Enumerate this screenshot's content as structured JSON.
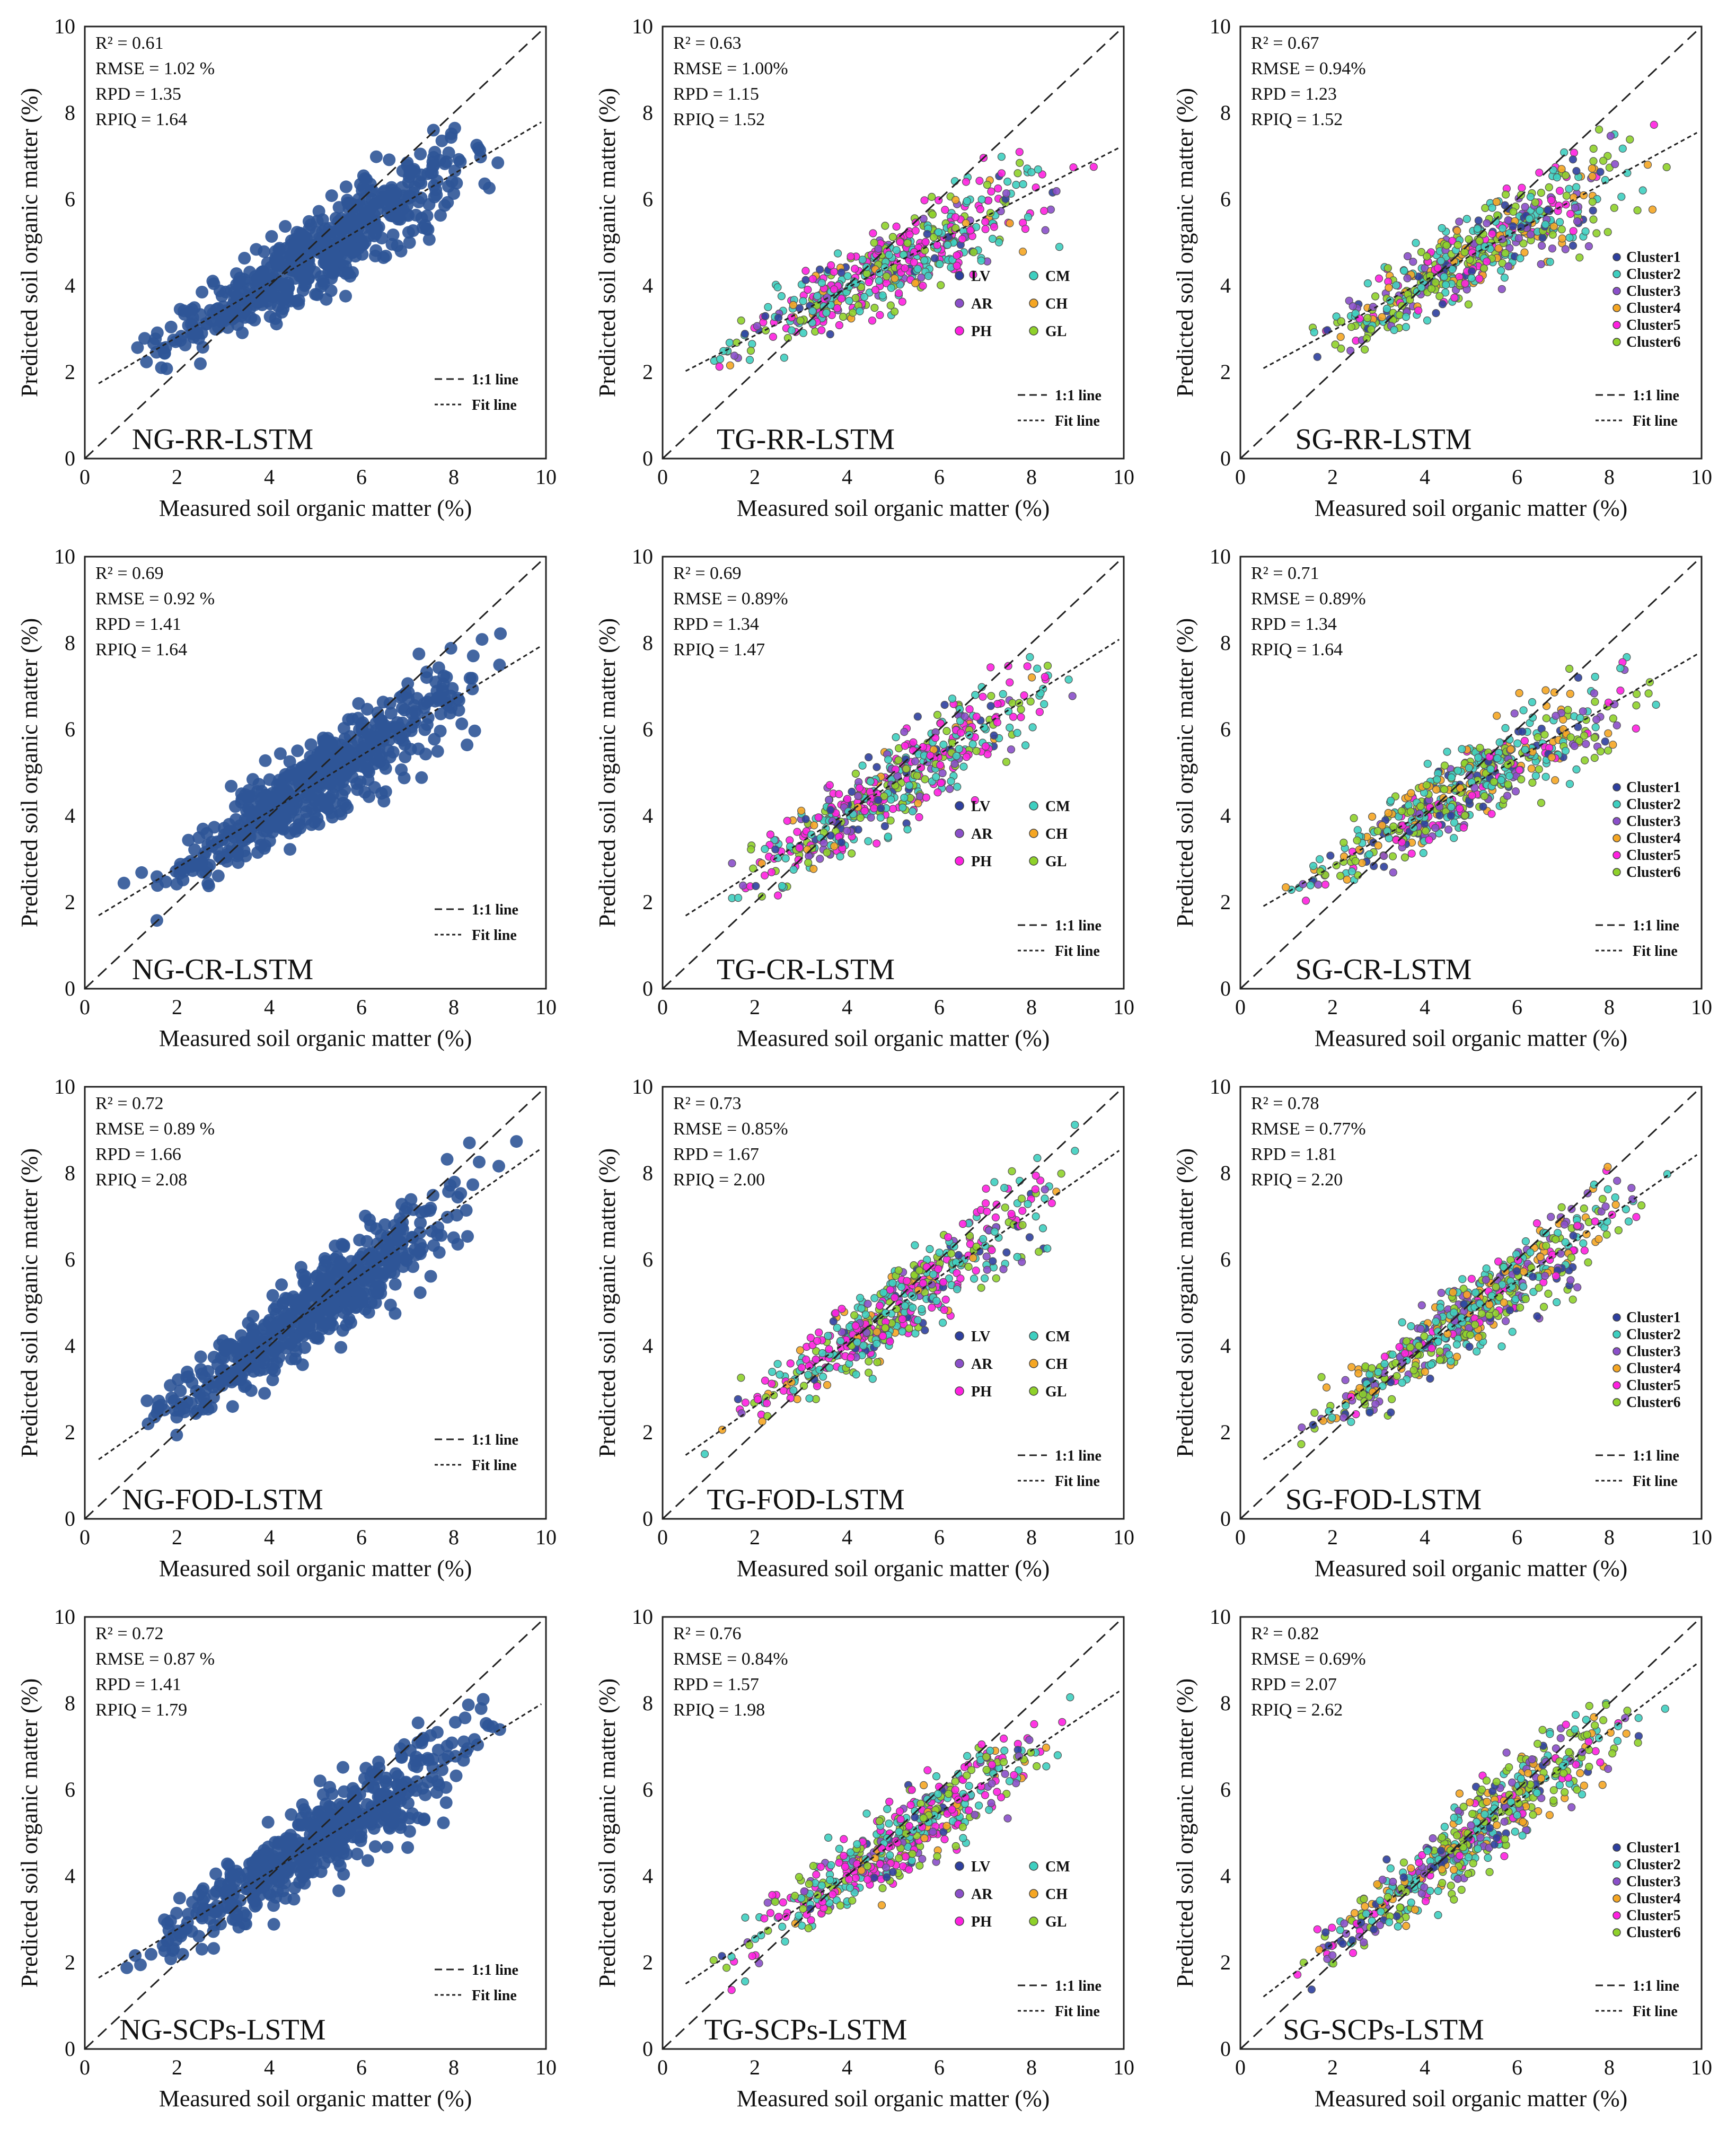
{
  "figure": {
    "xlabel": "Measured soil organic matter (%)",
    "ylabel": "Predicted soil organic matter (%)",
    "axis_ticks": [
      "0",
      "2",
      "4",
      "6",
      "8",
      "10"
    ],
    "line_legend": [
      "1:1 line",
      "Fit line"
    ],
    "soil_type_legend": [
      "LV",
      "CM",
      "AR",
      "CH",
      "PH",
      "GL"
    ],
    "cluster_legend": [
      "Cluster1",
      "Cluster2",
      "Cluster3",
      "Cluster4",
      "Cluster5",
      "Cluster6"
    ],
    "colors": {
      "ng_points": "#2f5597",
      "LV": "#2e3f9e",
      "CM": "#3ecfc0",
      "AR": "#8a4fc9",
      "CH": "#f5a623",
      "PH": "#ff20e0",
      "GL": "#8fd12a",
      "Cluster1": "#2e3f9e",
      "Cluster2": "#3ecfc0",
      "Cluster3": "#8a4fc9",
      "Cluster4": "#f5a623",
      "Cluster5": "#ff20e0",
      "Cluster6": "#8fd12a"
    }
  },
  "chart_data": [
    {
      "id": "NG-RR-LSTM",
      "type": "scatter",
      "group": "NG",
      "title": "NG-RR-LSTM",
      "xlim": [
        0,
        10
      ],
      "ylim": [
        0,
        10
      ],
      "stats": [
        "R² = 0.61",
        "RMSE = 1.02 %",
        "RPD = 1.35",
        "RPIQ = 1.64"
      ],
      "fit": {
        "slope": 0.63,
        "intercept": 1.55
      },
      "n": 560,
      "seed": 11
    },
    {
      "id": "TG-RR-LSTM",
      "type": "scatter",
      "group": "TG",
      "title": "TG-RR-LSTM",
      "xlim": [
        0,
        10
      ],
      "ylim": [
        0,
        10
      ],
      "stats": [
        "R² = 0.63",
        "RMSE = 1.00%",
        "RPD = 1.15",
        "RPIQ = 1.52"
      ],
      "fit": {
        "slope": 0.55,
        "intercept": 1.75
      },
      "n": 480,
      "seed": 12
    },
    {
      "id": "SG-RR-LSTM",
      "type": "scatter",
      "group": "SG",
      "title": "SG-RR-LSTM",
      "xlim": [
        0,
        10
      ],
      "ylim": [
        0,
        10
      ],
      "stats": [
        "R² = 0.67",
        "RMSE = 0.94%",
        "RPD = 1.23",
        "RPIQ = 1.52"
      ],
      "fit": {
        "slope": 0.58,
        "intercept": 1.8
      },
      "n": 520,
      "seed": 13
    },
    {
      "id": "NG-CR-LSTM",
      "type": "scatter",
      "group": "NG",
      "title": "NG-CR-LSTM",
      "xlim": [
        0,
        10
      ],
      "ylim": [
        0,
        10
      ],
      "stats": [
        "R² = 0.69",
        "RMSE = 0.92 %",
        "RPD = 1.41",
        "RPIQ = 1.64"
      ],
      "fit": {
        "slope": 0.65,
        "intercept": 1.5
      },
      "n": 560,
      "seed": 21
    },
    {
      "id": "TG-CR-LSTM",
      "type": "scatter",
      "group": "TG",
      "title": "TG-CR-LSTM",
      "xlim": [
        0,
        10
      ],
      "ylim": [
        0,
        10
      ],
      "stats": [
        "R² = 0.69",
        "RMSE = 0.89%",
        "RPD = 1.34",
        "RPIQ = 1.47"
      ],
      "fit": {
        "slope": 0.68,
        "intercept": 1.35
      },
      "n": 480,
      "seed": 22
    },
    {
      "id": "SG-CR-LSTM",
      "type": "scatter",
      "group": "SG",
      "title": "SG-CR-LSTM",
      "xlim": [
        0,
        10
      ],
      "ylim": [
        0,
        10
      ],
      "stats": [
        "R² = 0.71",
        "RMSE = 0.89%",
        "RPD = 1.34",
        "RPIQ = 1.64"
      ],
      "fit": {
        "slope": 0.62,
        "intercept": 1.6
      },
      "n": 520,
      "seed": 23
    },
    {
      "id": "NG-FOD-LSTM",
      "type": "scatter",
      "group": "NG",
      "title": "NG-FOD-LSTM",
      "xlim": [
        0,
        10
      ],
      "ylim": [
        0,
        10
      ],
      "stats": [
        "R² = 0.72",
        "RMSE = 0.89 %",
        "RPD = 1.66",
        "RPIQ = 2.08"
      ],
      "fit": {
        "slope": 0.75,
        "intercept": 1.15
      },
      "n": 560,
      "seed": 31
    },
    {
      "id": "TG-FOD-LSTM",
      "type": "scatter",
      "group": "TG",
      "title": "TG-FOD-LSTM",
      "xlim": [
        0,
        10
      ],
      "ylim": [
        0,
        10
      ],
      "stats": [
        "R² = 0.73",
        "RMSE = 0.85%",
        "RPD = 1.67",
        "RPIQ = 2.00"
      ],
      "fit": {
        "slope": 0.75,
        "intercept": 1.1
      },
      "n": 480,
      "seed": 32
    },
    {
      "id": "SG-FOD-LSTM",
      "type": "scatter",
      "group": "SG",
      "title": "SG-FOD-LSTM",
      "xlim": [
        0,
        10
      ],
      "ylim": [
        0,
        10
      ],
      "stats": [
        "R² = 0.78",
        "RMSE = 0.77%",
        "RPD = 1.81",
        "RPIQ = 2.20"
      ],
      "fit": {
        "slope": 0.75,
        "intercept": 1.0
      },
      "n": 520,
      "seed": 33
    },
    {
      "id": "NG-SCPs-LSTM",
      "type": "scatter",
      "group": "NG",
      "title": "NG-SCPs-LSTM",
      "xlim": [
        0,
        10
      ],
      "ylim": [
        0,
        10
      ],
      "stats": [
        "R² = 0.72",
        "RMSE = 0.87 %",
        "RPD = 1.41",
        "RPIQ = 1.79"
      ],
      "fit": {
        "slope": 0.66,
        "intercept": 1.45
      },
      "n": 560,
      "seed": 41
    },
    {
      "id": "TG-SCPs-LSTM",
      "type": "scatter",
      "group": "TG",
      "title": "TG-SCPs-LSTM",
      "xlim": [
        0,
        10
      ],
      "ylim": [
        0,
        10
      ],
      "stats": [
        "R² = 0.76",
        "RMSE = 0.84%",
        "RPD = 1.57",
        "RPIQ = 1.98"
      ],
      "fit": {
        "slope": 0.72,
        "intercept": 1.15
      },
      "n": 480,
      "seed": 42
    },
    {
      "id": "SG-SCPs-LSTM",
      "type": "scatter",
      "group": "SG",
      "title": "SG-SCPs-LSTM",
      "xlim": [
        0,
        10
      ],
      "ylim": [
        0,
        10
      ],
      "stats": [
        "R² = 0.82",
        "RMSE = 0.69%",
        "RPD = 2.07",
        "RPIQ = 2.62"
      ],
      "fit": {
        "slope": 0.82,
        "intercept": 0.8
      },
      "n": 520,
      "seed": 43
    }
  ]
}
